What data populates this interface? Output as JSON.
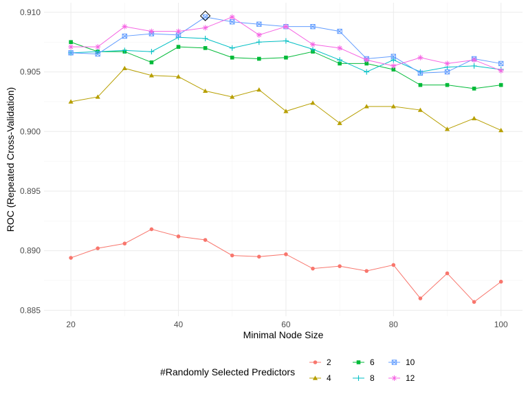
{
  "chart_data": {
    "type": "line",
    "xlabel": "Minimal Node Size",
    "ylabel": "ROC (Repeated Cross-Validation)",
    "xlim": [
      15,
      104
    ],
    "ylim": [
      0.8845,
      0.9108
    ],
    "xticks": [
      20,
      40,
      60,
      80,
      100
    ],
    "yticks": [
      0.885,
      0.89,
      0.895,
      0.9,
      0.905,
      0.91
    ],
    "ytick_labels": [
      "0.885",
      "0.890",
      "0.895",
      "0.900",
      "0.905",
      "0.910"
    ],
    "grid": true,
    "legend_title": "#Randomly Selected Predictors",
    "legend_position": "bottom",
    "x": [
      20,
      25,
      30,
      35,
      40,
      45,
      50,
      55,
      60,
      65,
      70,
      75,
      80,
      85,
      90,
      95,
      100
    ],
    "series": [
      {
        "name": "2",
        "color": "#F8766D",
        "marker": "circle",
        "values": [
          0.8894,
          0.8902,
          0.8906,
          0.8918,
          0.8912,
          0.8909,
          0.8896,
          0.8895,
          0.8897,
          0.8885,
          0.8887,
          0.8883,
          0.8888,
          0.886,
          0.8881,
          0.8857,
          0.8874
        ]
      },
      {
        "name": "4",
        "color": "#B79F00",
        "marker": "triangle",
        "values": [
          0.9025,
          0.9029,
          0.9053,
          0.9047,
          0.9046,
          0.9034,
          0.9029,
          0.9035,
          0.9017,
          0.9024,
          0.9007,
          0.9021,
          0.9021,
          0.9018,
          0.9002,
          0.9011,
          0.9001
        ]
      },
      {
        "name": "6",
        "color": "#00BA38",
        "marker": "square",
        "values": [
          0.9075,
          0.9067,
          0.9067,
          0.9058,
          0.9071,
          0.907,
          0.9062,
          0.9061,
          0.9062,
          0.9067,
          0.9057,
          0.9057,
          0.9052,
          0.9039,
          0.9039,
          0.9036,
          0.9039
        ]
      },
      {
        "name": "8",
        "color": "#00BFC4",
        "marker": "plus",
        "values": [
          0.9066,
          0.9067,
          0.9068,
          0.9067,
          0.9079,
          0.9078,
          0.907,
          0.9075,
          0.9076,
          0.9069,
          0.906,
          0.905,
          0.906,
          0.905,
          0.9054,
          0.9055,
          0.9052
        ]
      },
      {
        "name": "10",
        "color": "#619CFF",
        "marker": "square-cross",
        "values": [
          0.9066,
          0.9065,
          0.908,
          0.9082,
          0.9081,
          0.9096,
          0.9092,
          0.909,
          0.9088,
          0.9088,
          0.9084,
          0.9061,
          0.9063,
          0.9049,
          0.905,
          0.9061,
          0.9057
        ]
      },
      {
        "name": "12",
        "color": "#F564E3",
        "marker": "asterisk",
        "values": [
          0.9071,
          0.9071,
          0.9088,
          0.9084,
          0.9084,
          0.9087,
          0.9096,
          0.9081,
          0.9088,
          0.9073,
          0.907,
          0.906,
          0.9055,
          0.9062,
          0.9057,
          0.906,
          0.9051
        ]
      }
    ],
    "annotations": [
      {
        "type": "best-point",
        "x": 45,
        "y": 0.9097
      }
    ]
  }
}
